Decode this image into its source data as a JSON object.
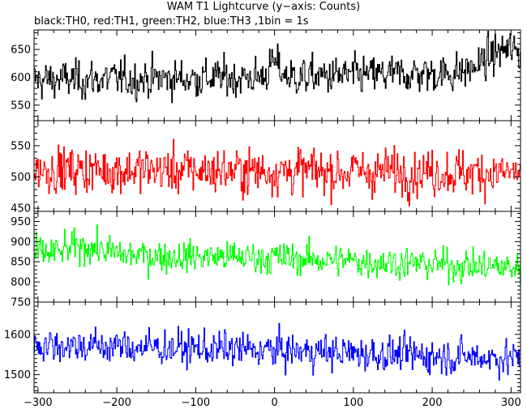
{
  "title": "WAM T1 Lightcurve (y−axis: Counts)",
  "subtitle": "black:TH0, red:TH1, green:TH2, blue:TH3 ,1bin = 1s",
  "chart_data": {
    "type": "line",
    "xlim": [
      -305,
      312
    ],
    "x_ticks": [
      -300,
      -200,
      -100,
      0,
      100,
      200,
      300
    ],
    "x_tick_labels": [
      "−300",
      "−200",
      "−100",
      "0",
      "100",
      "200",
      "300"
    ],
    "grid": false,
    "panels": [
      {
        "name": "TH0",
        "color": "#000000",
        "ylim": [
          522,
          685
        ],
        "yticks": [
          550,
          600,
          650
        ],
        "mean": 595,
        "amp": 28,
        "trend": [
          [
            -305,
            0
          ],
          [
            0,
            5
          ],
          [
            312,
            15
          ]
        ],
        "bumps": [
          [
            0,
            10,
            25
          ],
          [
            295,
            35,
            40
          ]
        ]
      },
      {
        "name": "TH1",
        "color": "#ff0000",
        "ylim": [
          445,
          590
        ],
        "yticks": [
          450,
          500,
          550
        ],
        "mean": 512,
        "amp": 30,
        "trend": [
          [
            -305,
            0
          ],
          [
            312,
            -5
          ]
        ],
        "bumps": []
      },
      {
        "name": "TH2",
        "color": "#00ff00",
        "ylim": [
          750,
          975
        ],
        "yticks": [
          750,
          800,
          850,
          900,
          950
        ],
        "mean": 865,
        "amp": 32,
        "trend": [
          [
            -305,
            5
          ],
          [
            0,
            -5
          ],
          [
            312,
            -30
          ]
        ],
        "bumps": [
          [
            -240,
            30,
            20
          ]
        ]
      },
      {
        "name": "TH3",
        "color": "#0000ff",
        "ylim": [
          1455,
          1680
        ],
        "yticks": [
          1500,
          1600
        ],
        "mean": 1575,
        "amp": 35,
        "trend": [
          [
            -305,
            0
          ],
          [
            0,
            -15
          ],
          [
            312,
            -35
          ]
        ],
        "bumps": []
      }
    ]
  }
}
